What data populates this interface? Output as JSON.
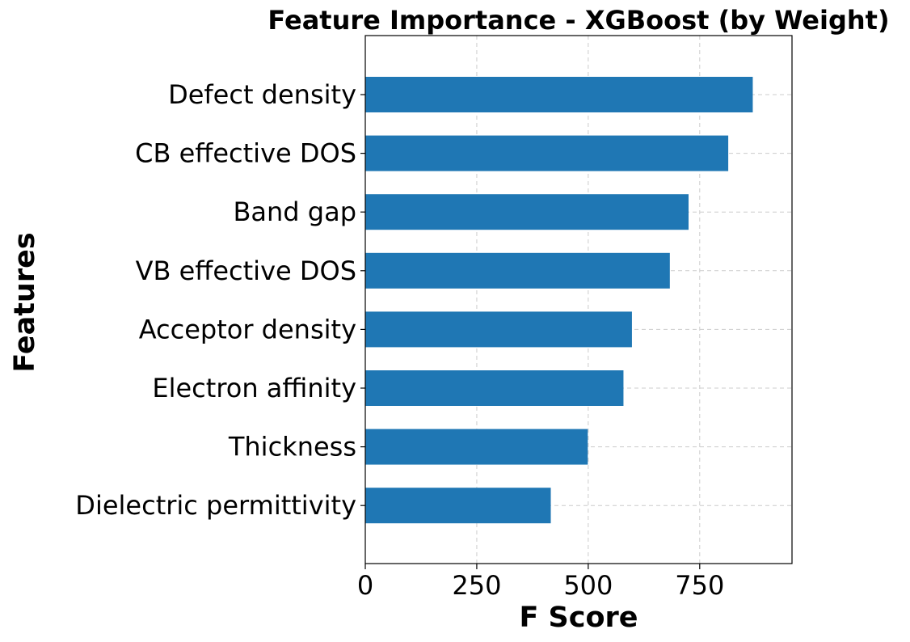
{
  "chart_data": {
    "type": "bar",
    "orientation": "horizontal",
    "title": "Feature Importance - XGBoost (by Weight)",
    "xlabel": "F Score",
    "ylabel": "Features",
    "categories": [
      "Defect density",
      "CB effective DOS",
      "Band gap",
      "VB effective DOS",
      "Acceptor density",
      "Electron affinity",
      "Thickness",
      "Dielectric permittivity"
    ],
    "values": [
      869,
      814,
      725,
      683,
      598,
      579,
      499,
      416
    ],
    "xlim": [
      0,
      957
    ],
    "xticks": [
      0,
      250,
      500,
      750
    ],
    "xtick_labels": [
      "0",
      "250",
      "500",
      "750"
    ],
    "grid": true,
    "bar_color": "#1f77b4",
    "grid_color": "#cccccc"
  }
}
